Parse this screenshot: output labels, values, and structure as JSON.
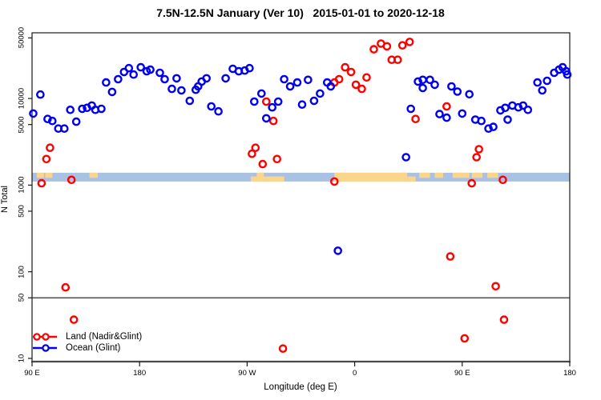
{
  "title": "7.5N-12.5N January (Ver 10)   2015-01-01 to 2020-12-18",
  "axes": {
    "x": {
      "label": "Longitude (deg E)",
      "range_deg": [
        0,
        450
      ],
      "ticks": [
        {
          "deg": 0,
          "label": "90 E"
        },
        {
          "deg": 90,
          "label": "180"
        },
        {
          "deg": 180,
          "label": "90 W"
        },
        {
          "deg": 270,
          "label": "0"
        },
        {
          "deg": 360,
          "label": "90 E"
        },
        {
          "deg": 450,
          "label": "180"
        }
      ]
    },
    "y": {
      "label": "N Total",
      "scale": "log",
      "range": [
        9,
        57000
      ],
      "ticks": [
        "10",
        "50",
        "100",
        "500",
        "1000",
        "5000",
        "10000",
        "50000"
      ]
    }
  },
  "legend": {
    "items": [
      {
        "label": "Land (Nadir&Glint)",
        "color": "#ff0000"
      },
      {
        "label": "Ocean (Glint)",
        "color": "#0000f0"
      }
    ]
  },
  "chart_data": {
    "type": "scatter",
    "title": "7.5N-12.5N January (Ver 10)   2015-01-01 to 2020-12-18",
    "xlabel": "Longitude (deg E)",
    "ylabel": "N Total",
    "x_axis_deg_from_90E": true,
    "ylim": [
      9,
      57000
    ],
    "grid": false,
    "legend_position": "bottom-left",
    "reference_line_value": 50,
    "map_strip": {
      "value_top": 1390,
      "value_bottom": 1100,
      "ocean_color": "#a9c1e2",
      "land_color": "#fcd58c",
      "land_segments": [
        {
          "from": 4,
          "to": 10,
          "part": "top"
        },
        {
          "from": 11,
          "to": 17,
          "part": "top"
        },
        {
          "from": 48,
          "to": 55,
          "part": "top"
        },
        {
          "from": 183,
          "to": 196,
          "part": "bottom"
        },
        {
          "from": 188,
          "to": 194,
          "part": "top"
        },
        {
          "from": 196,
          "to": 211,
          "part": "bottom"
        },
        {
          "from": 253,
          "to": 314,
          "part": "full"
        },
        {
          "from": 314,
          "to": 321,
          "part": "bottom"
        },
        {
          "from": 324,
          "to": 333,
          "part": "top"
        },
        {
          "from": 337,
          "to": 344,
          "part": "top"
        },
        {
          "from": 352,
          "to": 366,
          "part": "top"
        },
        {
          "from": 368,
          "to": 377,
          "part": "top"
        },
        {
          "from": 381,
          "to": 390,
          "part": "top"
        }
      ]
    },
    "series": [
      {
        "name": "Land (Nadir&Glint)",
        "color": "#ff0000",
        "points": [
          [
            8,
            1050
          ],
          [
            12,
            2000
          ],
          [
            15,
            2700
          ],
          [
            28,
            66
          ],
          [
            33,
            1150
          ],
          [
            35,
            28
          ],
          [
            184,
            2300
          ],
          [
            187,
            2700
          ],
          [
            193,
            1750
          ],
          [
            196,
            9200
          ],
          [
            202,
            5500
          ],
          [
            205,
            2000
          ],
          [
            210,
            13
          ],
          [
            253,
            1100
          ],
          [
            253,
            15300
          ],
          [
            257,
            16700
          ],
          [
            262,
            22900
          ],
          [
            267,
            20200
          ],
          [
            271,
            14400
          ],
          [
            276,
            12900
          ],
          [
            280,
            17500
          ],
          [
            286,
            37000
          ],
          [
            292,
            43000
          ],
          [
            297,
            40000
          ],
          [
            301,
            28000
          ],
          [
            306,
            28000
          ],
          [
            310,
            41000
          ],
          [
            316,
            45000
          ],
          [
            321,
            5800
          ],
          [
            347,
            8100
          ],
          [
            350,
            150
          ],
          [
            362,
            17
          ],
          [
            368,
            1050
          ],
          [
            372,
            2100
          ],
          [
            374,
            2600
          ],
          [
            388,
            68
          ],
          [
            394,
            1150
          ],
          [
            395,
            28
          ]
        ]
      },
      {
        "name": "Ocean (Glint)",
        "color": "#0000f0",
        "points": [
          [
            1,
            6700
          ],
          [
            7,
            11100
          ],
          [
            13,
            5800
          ],
          [
            17,
            5500
          ],
          [
            22,
            4500
          ],
          [
            27,
            4500
          ],
          [
            32,
            7400
          ],
          [
            37,
            5400
          ],
          [
            42,
            7600
          ],
          [
            46,
            7800
          ],
          [
            50,
            8300
          ],
          [
            53,
            7400
          ],
          [
            58,
            7600
          ],
          [
            62,
            15300
          ],
          [
            67,
            11900
          ],
          [
            72,
            16700
          ],
          [
            77,
            20200
          ],
          [
            81,
            22400
          ],
          [
            85,
            18900
          ],
          [
            91,
            22900
          ],
          [
            96,
            20600
          ],
          [
            99,
            21500
          ],
          [
            107,
            19800
          ],
          [
            111,
            16700
          ],
          [
            117,
            12900
          ],
          [
            121,
            17100
          ],
          [
            125,
            12400
          ],
          [
            132,
            9400
          ],
          [
            137,
            12600
          ],
          [
            139,
            13800
          ],
          [
            142,
            15700
          ],
          [
            146,
            17100
          ],
          [
            150,
            8100
          ],
          [
            156,
            7100
          ],
          [
            162,
            17100
          ],
          [
            168,
            22000
          ],
          [
            173,
            20600
          ],
          [
            178,
            21000
          ],
          [
            182,
            22400
          ],
          [
            186,
            9200
          ],
          [
            192,
            11400
          ],
          [
            196,
            5900
          ],
          [
            201,
            7900
          ],
          [
            206,
            9200
          ],
          [
            211,
            16700
          ],
          [
            216,
            13800
          ],
          [
            222,
            15300
          ],
          [
            226,
            8500
          ],
          [
            231,
            16400
          ],
          [
            236,
            9400
          ],
          [
            241,
            11400
          ],
          [
            247,
            15300
          ],
          [
            250,
            13800
          ],
          [
            256,
            175
          ],
          [
            313,
            2100
          ],
          [
            317,
            7600
          ],
          [
            323,
            15700
          ],
          [
            327,
            16400
          ],
          [
            327,
            13200
          ],
          [
            333,
            16400
          ],
          [
            337,
            14400
          ],
          [
            341,
            6600
          ],
          [
            347,
            6000
          ],
          [
            351,
            13800
          ],
          [
            356,
            12000
          ],
          [
            360,
            6700
          ],
          [
            366,
            11200
          ],
          [
            371,
            5700
          ],
          [
            376,
            5500
          ],
          [
            382,
            4500
          ],
          [
            386,
            4700
          ],
          [
            392,
            7300
          ],
          [
            396,
            7800
          ],
          [
            398,
            5700
          ],
          [
            402,
            8300
          ],
          [
            407,
            7900
          ],
          [
            411,
            8300
          ],
          [
            415,
            7400
          ],
          [
            423,
            15300
          ],
          [
            427,
            12400
          ],
          [
            431,
            16000
          ],
          [
            437,
            19800
          ],
          [
            441,
            21500
          ],
          [
            444,
            22900
          ],
          [
            447,
            20600
          ],
          [
            448,
            18900
          ]
        ]
      }
    ]
  }
}
